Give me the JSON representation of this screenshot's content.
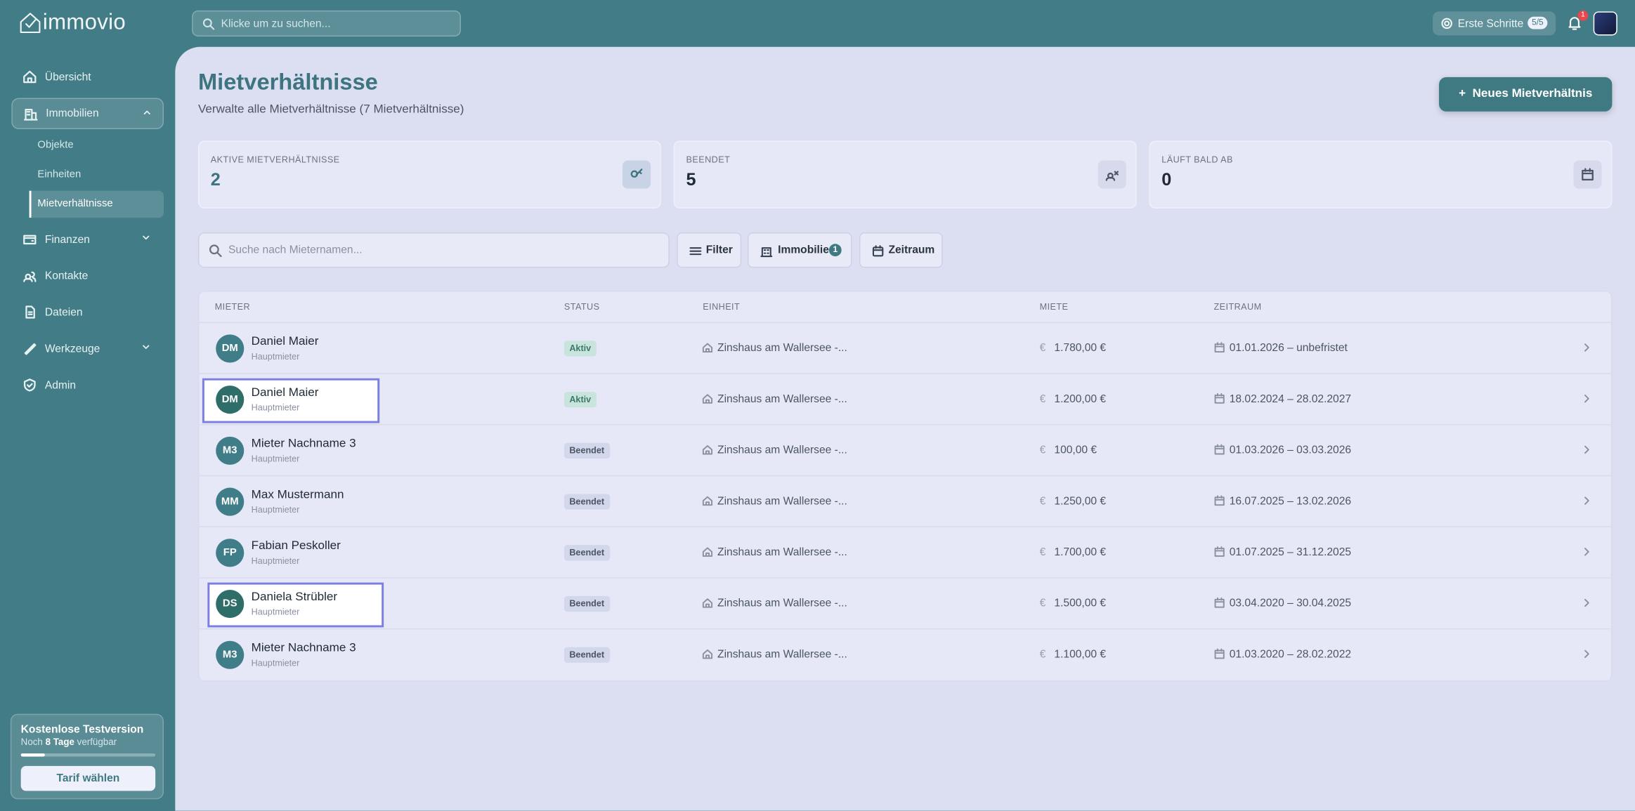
{
  "brand": "immovio",
  "search_placeholder": "Klicke um zu suchen...",
  "topbar": {
    "onboarding": "Erste Schritte",
    "onboarding_progress": "5/5",
    "notifications": "1"
  },
  "sidebar": {
    "nav": [
      {
        "label": "Übersicht"
      },
      {
        "label": "Immobilien"
      },
      {
        "label": "Finanzen"
      },
      {
        "label": "Kontakte"
      },
      {
        "label": "Dateien"
      },
      {
        "label": "Werkzeuge"
      },
      {
        "label": "Admin"
      }
    ],
    "sub": [
      {
        "label": "Objekte"
      },
      {
        "label": "Einheiten"
      },
      {
        "label": "Mietverhältnisse"
      }
    ],
    "trial": {
      "title": "Kostenlose Testversion",
      "prefix": "Noch",
      "days": "8 Tage",
      "suffix": "verfügbar",
      "button": "Tarif wählen"
    }
  },
  "header": {
    "title": "Mietverhältnisse",
    "subtitle": "Verwalte alle Mietverhältnisse (7 Mietverhältnisse)",
    "button": "Neues Mietverhältnis"
  },
  "stats": [
    {
      "label": "AKTIVE MIETVERHÄLTNISSE",
      "value": "2"
    },
    {
      "label": "BEENDET",
      "value": "5"
    },
    {
      "label": "LÄUFT BALD AB",
      "value": "0"
    }
  ],
  "toolbar": {
    "search_placeholder": "Suche nach Mieternamen...",
    "filter": "Filter",
    "property": "Immobilie",
    "property_count": "1",
    "period": "Zeitraum"
  },
  "table": {
    "columns": [
      "MIETER",
      "STATUS",
      "EINHEIT",
      "MIETE",
      "ZEITRAUM"
    ],
    "rows": [
      {
        "initials": "DM",
        "name": "Daniel Maier",
        "role": "Hauptmieter",
        "status": "Aktiv",
        "unit": "Zinshaus am Wallersee -...",
        "rent": "1.780,00 €",
        "period": "01.01.2026 – unbefristet"
      },
      {
        "initials": "DM",
        "name": "Daniel Maier",
        "role": "Hauptmieter",
        "status": "Aktiv",
        "unit": "Zinshaus am Wallersee -...",
        "rent": "1.200,00 €",
        "period": "18.02.2024 – 28.02.2027"
      },
      {
        "initials": "M3",
        "name": "Mieter Nachname 3",
        "role": "Hauptmieter",
        "status": "Beendet",
        "unit": "Zinshaus am Wallersee -...",
        "rent": "100,00 €",
        "period": "01.03.2026 – 03.03.2026"
      },
      {
        "initials": "MM",
        "name": "Max Mustermann",
        "role": "Hauptmieter",
        "status": "Beendet",
        "unit": "Zinshaus am Wallersee -...",
        "rent": "1.250,00 €",
        "period": "16.07.2025 – 13.02.2026"
      },
      {
        "initials": "FP",
        "name": "Fabian Peskoller",
        "role": "Hauptmieter",
        "status": "Beendet",
        "unit": "Zinshaus am Wallersee -...",
        "rent": "1.700,00 €",
        "period": "01.07.2025 – 31.12.2025"
      },
      {
        "initials": "DS",
        "name": "Daniela Strübler",
        "role": "Hauptmieter",
        "status": "Beendet",
        "unit": "Zinshaus am Wallersee -...",
        "rent": "1.500,00 €",
        "period": "03.04.2020 – 30.04.2025"
      },
      {
        "initials": "M3",
        "name": "Mieter Nachname 3",
        "role": "Hauptmieter",
        "status": "Beendet",
        "unit": "Zinshaus am Wallersee -...",
        "rent": "1.100,00 €",
        "period": "01.03.2020 – 28.02.2022"
      }
    ]
  }
}
